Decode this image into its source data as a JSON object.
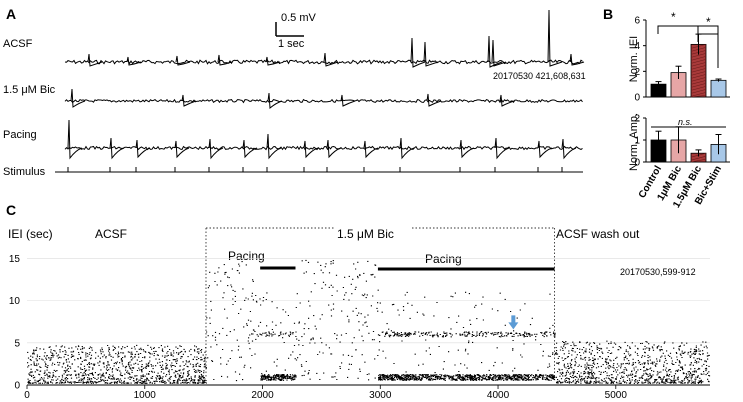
{
  "panel_a": {
    "label": "A",
    "scale_bar": {
      "v": "0.5 mV",
      "t": "1 sec"
    },
    "traces": [
      {
        "label": "ACSF"
      },
      {
        "label": "1.5 μM Bic"
      },
      {
        "label": "Pacing"
      },
      {
        "label": "Stimulus"
      }
    ],
    "file_id": "20170530 421,608,631"
  },
  "panel_b": {
    "label": "B",
    "colors": {
      "control": "#000000",
      "bic1": "#e6a6a6",
      "bic15": "#a83a3a",
      "bicstim": "#a8c8e8"
    },
    "significance": {
      "top_a": "*",
      "top_b": "*",
      "bottom": "n.s."
    },
    "chart_data": [
      {
        "type": "bar",
        "categories": [
          "Control",
          "1μM Bic",
          "1.5μM Bic",
          "Bic+Stim"
        ],
        "values": [
          1.0,
          1.9,
          4.1,
          1.3
        ],
        "errors": [
          0.2,
          0.5,
          0.8,
          0.1
        ],
        "ylabel": "Norm. IEI",
        "ylim": [
          0,
          6
        ],
        "yticks": [
          "0",
          "2",
          "4",
          "6"
        ]
      },
      {
        "type": "bar",
        "categories": [
          "Control",
          "1μM Bic",
          "1.5μM Bic",
          "Bic+Stim"
        ],
        "values": [
          1.0,
          1.0,
          0.4,
          0.8
        ],
        "errors": [
          0.4,
          0.6,
          0.15,
          0.45
        ],
        "ylabel": "Norm. Amp.",
        "ylim": [
          0,
          2
        ],
        "yticks": [
          "0",
          "1",
          "2"
        ]
      }
    ]
  },
  "panel_c": {
    "label": "C",
    "annotations": {
      "ylabel": "IEI (sec)",
      "acsf": "ACSF",
      "bic": "1.5 μM Bic",
      "pacing1": "Pacing",
      "pacing2": "Pacing",
      "wash": "ACSF wash out",
      "file_id": "20170530,599-912"
    },
    "arrow_color": "#5b9bd5",
    "chart_data": {
      "type": "scatter",
      "xlim": [
        0,
        5800
      ],
      "ylim": [
        0,
        16
      ],
      "xticks": [
        "0",
        "1000",
        "2000",
        "3000",
        "4000",
        "5000"
      ],
      "yticks": [
        "0",
        "5",
        "10",
        "15"
      ],
      "segments": [
        {
          "x_start": 0,
          "x_end": 1520,
          "condition": "ACSF",
          "y_typical": [
            0.3,
            4.5
          ]
        },
        {
          "x_start": 1520,
          "x_end": 1980,
          "condition": "1.5 μM Bic",
          "y_typical": [
            0.5,
            15
          ]
        },
        {
          "x_start": 1980,
          "x_end": 2280,
          "condition": "Pacing",
          "y_bands": [
            1.0,
            6.0
          ]
        },
        {
          "x_start": 2280,
          "x_end": 2980,
          "condition": "1.5 μM Bic",
          "y_typical": [
            0.5,
            15
          ]
        },
        {
          "x_start": 2980,
          "x_end": 4480,
          "condition": "Pacing",
          "y_bands": [
            1.0,
            6.0
          ]
        },
        {
          "x_start": 4480,
          "x_end": 5800,
          "condition": "ACSF wash out",
          "y_typical": [
            0.3,
            5
          ]
        }
      ],
      "dotted_markers_x": [
        1520,
        4480
      ],
      "pacing_bars": [
        [
          1980,
          2280
        ],
        [
          2980,
          4480
        ]
      ],
      "arrow_x": 4130,
      "arrow_y": 6.6
    }
  }
}
